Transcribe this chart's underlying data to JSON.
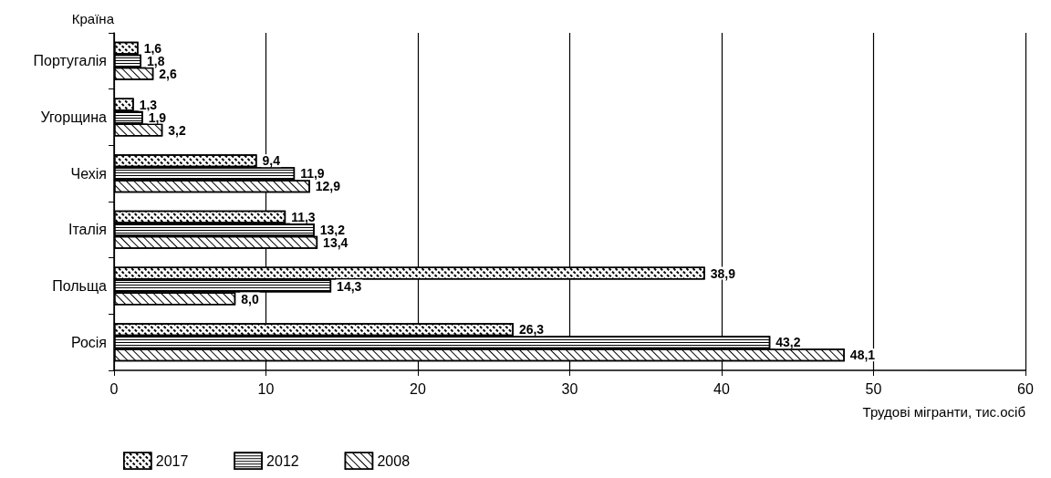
{
  "chart_data": {
    "type": "bar",
    "orientation": "horizontal",
    "ylabel": "Країна",
    "xlabel": "Трудові мігранти, тис.осіб",
    "categories": [
      "Португалія",
      "Угорщина",
      "Чехія",
      "Італія",
      "Польща",
      "Росія"
    ],
    "series": [
      {
        "name": "2017",
        "color": "#ffffff",
        "values": [
          1.6,
          1.3,
          9.4,
          11.3,
          38.9,
          26.3
        ],
        "value_labels": [
          "1,6",
          "1,3",
          "9,4",
          "11,3",
          "38,9",
          "26,3"
        ]
      },
      {
        "name": "2012",
        "color": "#ffffff",
        "values": [
          1.8,
          1.9,
          11.9,
          13.2,
          14.3,
          43.2
        ],
        "value_labels": [
          "1,8",
          "1,9",
          "11,9",
          "13,2",
          "14,3",
          "43,2"
        ]
      },
      {
        "name": "2008",
        "color": "#ffffff",
        "values": [
          2.6,
          3.2,
          12.9,
          13.4,
          8.0,
          48.1
        ],
        "value_labels": [
          "2,6",
          "3,2",
          "12,9",
          "13,4",
          "8,0",
          "48,1"
        ]
      }
    ],
    "xlim": [
      0,
      60
    ],
    "xticks": [
      0,
      10,
      20,
      30,
      40,
      50,
      60
    ],
    "grid": "x",
    "legend": "bottom left"
  }
}
